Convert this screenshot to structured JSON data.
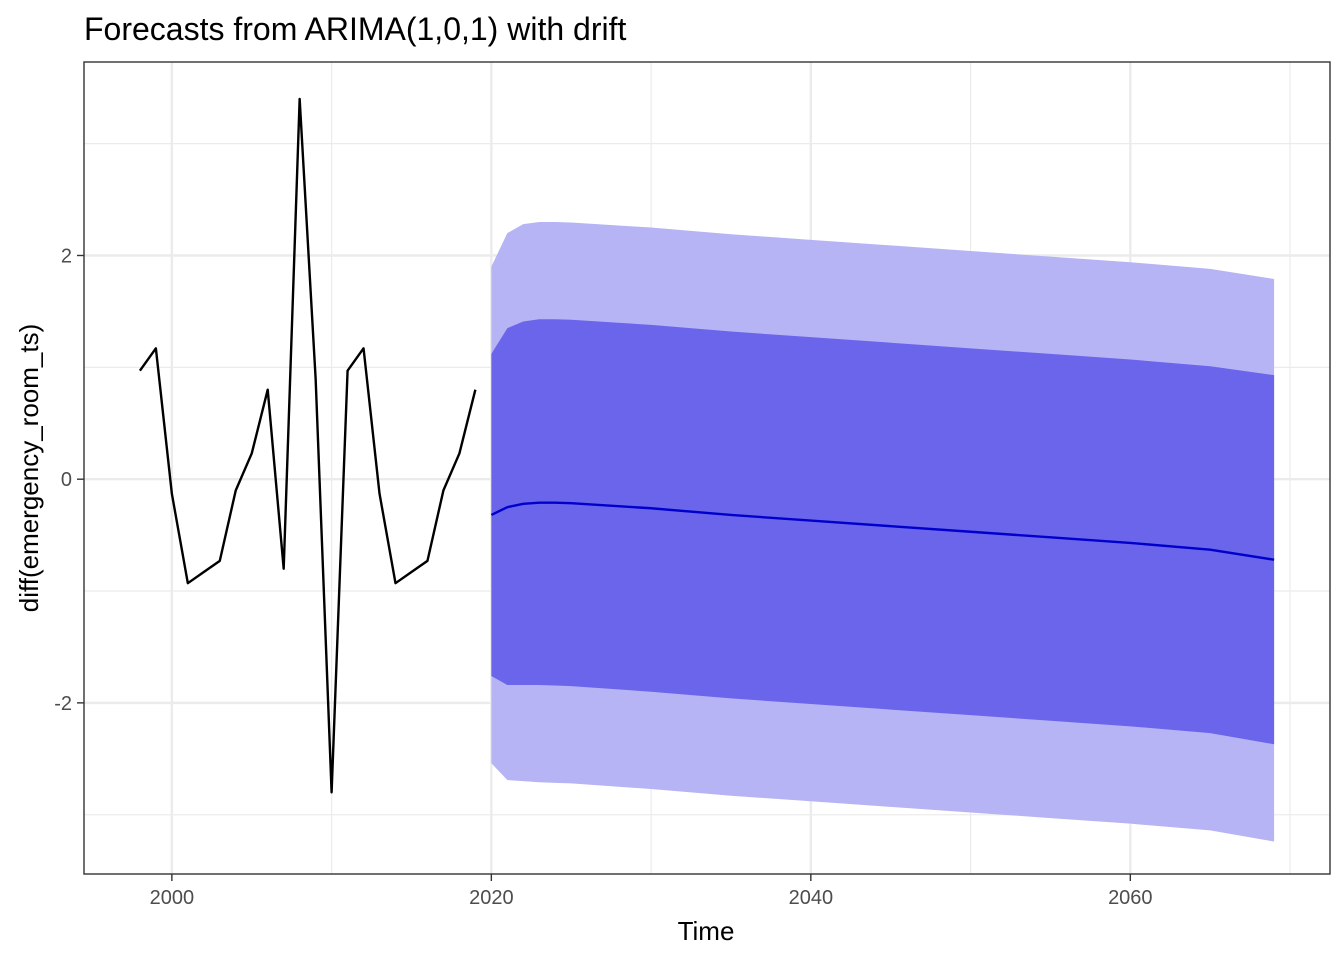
{
  "chart_data": {
    "type": "line",
    "title": "Forecasts from ARIMA(1,0,1) with drift",
    "xlabel": "Time",
    "ylabel": "diff(emergency_room_ts)",
    "xlim": [
      1994.5,
      2072.5
    ],
    "ylim": [
      -3.53,
      3.73
    ],
    "x_ticks": [
      2000,
      2020,
      2040,
      2060
    ],
    "x_tick_labels": [
      "2000",
      "2020",
      "2040",
      "2060"
    ],
    "y_ticks": [
      -2,
      0,
      2
    ],
    "y_tick_labels": [
      "-2",
      "0",
      "2"
    ],
    "grid": true,
    "legend": "none",
    "colors": {
      "history": "#000000",
      "forecast": "#0000cc",
      "band80": "#6a65ea",
      "band95": "#b6b4f4",
      "grid": "#ebebeb",
      "panel_border": "#333333"
    },
    "series": [
      {
        "x": [
          1998,
          1999,
          2000,
          2001,
          2002,
          2003,
          2004,
          2005,
          2006,
          2007,
          2008,
          2009,
          2010,
          2011,
          2012,
          2013,
          2014,
          2015,
          2016,
          2017,
          2018,
          2019
        ],
        "values": [
          0.97,
          1.17,
          -0.13,
          -0.93,
          -0.83,
          -0.73,
          -0.1,
          0.23,
          0.8,
          -0.8,
          3.4,
          0.9,
          -2.8,
          0.97,
          1.17,
          -0.13,
          -0.93,
          -0.83,
          -0.73,
          -0.1,
          0.23,
          0.8
        ]
      },
      {
        "x": [
          2020,
          2021,
          2022,
          2023,
          2024,
          2025,
          2030,
          2035,
          2040,
          2045,
          2050,
          2055,
          2060,
          2065,
          2069
        ],
        "values": [
          -0.32,
          -0.25,
          -0.22,
          -0.21,
          -0.21,
          -0.215,
          -0.26,
          -0.32,
          -0.37,
          -0.42,
          -0.47,
          -0.52,
          -0.57,
          -0.63,
          -0.72
        ],
        "lo80": [
          -1.76,
          -1.84,
          -1.84,
          -1.84,
          -1.845,
          -1.85,
          -1.9,
          -1.96,
          -2.01,
          -2.06,
          -2.11,
          -2.16,
          -2.21,
          -2.27,
          -2.37
        ],
        "hi80": [
          1.12,
          1.35,
          1.41,
          1.43,
          1.43,
          1.425,
          1.38,
          1.32,
          1.27,
          1.22,
          1.17,
          1.12,
          1.07,
          1.01,
          0.93
        ],
        "lo95": [
          -2.54,
          -2.69,
          -2.7,
          -2.71,
          -2.715,
          -2.72,
          -2.77,
          -2.83,
          -2.88,
          -2.93,
          -2.98,
          -3.03,
          -3.08,
          -3.14,
          -3.24
        ],
        "hi95": [
          1.9,
          2.2,
          2.28,
          2.3,
          2.3,
          2.295,
          2.25,
          2.19,
          2.14,
          2.09,
          2.04,
          1.99,
          1.94,
          1.88,
          1.79
        ]
      }
    ]
  }
}
